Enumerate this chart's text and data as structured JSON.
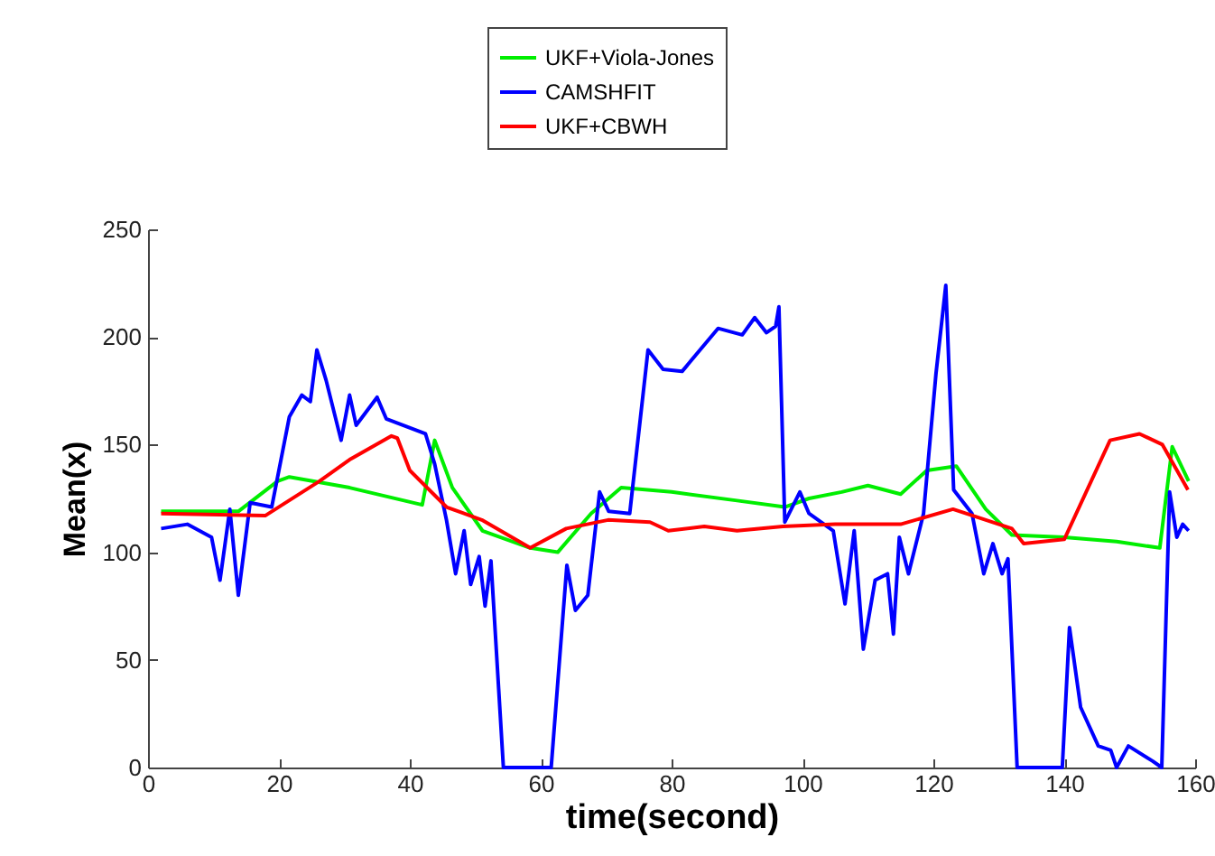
{
  "chart_data": {
    "type": "line",
    "xlabel": "time(second)",
    "ylabel": "Mean(x)",
    "xlim": [
      0,
      160
    ],
    "xticks": [
      0,
      20,
      40,
      60,
      80,
      100,
      120,
      140,
      160
    ],
    "ylim": [
      0,
      250
    ],
    "yticks": [
      0,
      50,
      100,
      150,
      200,
      250
    ],
    "grid": false,
    "legend": "top",
    "marker": "none",
    "line_style": "solid",
    "series": [
      {
        "name": "UKF+Viola-Jones",
        "color": "#00ee00",
        "x": [
          2,
          13.8,
          19.8,
          21.6,
          30.8,
          41.9,
          43.8,
          46.5,
          51.1,
          58.4,
          62.6,
          67.7,
          72.3,
          80,
          90,
          97.3,
          101,
          106,
          110,
          115,
          119,
          123.5,
          128,
          132,
          140,
          148,
          154.6,
          156.5,
          159
        ],
        "values": [
          119,
          119,
          133,
          135,
          130,
          122,
          152,
          130,
          110,
          102,
          100,
          118,
          130,
          128,
          124,
          121,
          125,
          128,
          131,
          127,
          138,
          140,
          120,
          108,
          107,
          105,
          102,
          149,
          133
        ]
      },
      {
        "name": "CAMSHFIT",
        "color": "#0000ff",
        "x": [
          2,
          6,
          9.7,
          11,
          12.5,
          13.8,
          15.6,
          18.9,
          21.6,
          23.5,
          24.8,
          25.8,
          27.2,
          29.5,
          30.8,
          31.8,
          35,
          36.4,
          42.4,
          43.8,
          45.6,
          47,
          48.3,
          49.3,
          50.6,
          51.5,
          52.4,
          54.3,
          61.6,
          64,
          65.3,
          67.2,
          69,
          70.4,
          73.6,
          76.4,
          78.7,
          81.6,
          87.1,
          90.8,
          92.7,
          94.5,
          95.9,
          96.4,
          97.3,
          99.6,
          101,
          104.7,
          106.5,
          107.9,
          109.3,
          111.1,
          113,
          113.9,
          114.8,
          116.2,
          118.5,
          120.4,
          121.9,
          123.1,
          125.9,
          127.7,
          129.1,
          130.5,
          131.4,
          132.8,
          139.7,
          140.8,
          142.5,
          145.2,
          147.1,
          148,
          149.8,
          153.5,
          154.9,
          156.1,
          157.2,
          158.1,
          159
        ],
        "values": [
          111,
          113,
          107,
          87,
          120,
          80,
          123,
          121,
          163,
          173,
          170,
          194,
          180,
          152,
          173,
          159,
          172,
          162,
          155,
          141,
          115,
          90,
          110,
          85,
          98,
          75,
          96,
          0,
          0,
          94,
          73,
          80,
          128,
          119,
          118,
          194,
          185,
          184,
          204,
          201,
          209,
          202,
          205,
          214,
          114,
          128,
          118,
          110,
          76,
          110,
          55,
          87,
          90,
          62,
          107,
          90,
          118,
          183,
          224,
          129,
          118,
          90,
          104,
          90,
          97,
          0,
          0,
          65,
          28,
          10,
          8,
          0,
          10,
          3,
          0,
          128,
          107,
          113,
          110
        ]
      },
      {
        "name": "UKF+CBWH",
        "color": "#ff0000",
        "x": [
          2,
          17.9,
          26.2,
          30.8,
          37.2,
          38.1,
          40,
          45.6,
          51,
          58.4,
          63.9,
          70.3,
          76.7,
          79.5,
          85,
          90,
          97,
          105,
          115,
          123,
          132,
          133.8,
          140,
          147,
          151.5,
          155,
          158.9
        ],
        "values": [
          118,
          117,
          133,
          143,
          154,
          153,
          138,
          121,
          115,
          102,
          111,
          115,
          114,
          110,
          112,
          110,
          112,
          113,
          113,
          120,
          111,
          104,
          106,
          152,
          155,
          150,
          129
        ]
      }
    ]
  }
}
